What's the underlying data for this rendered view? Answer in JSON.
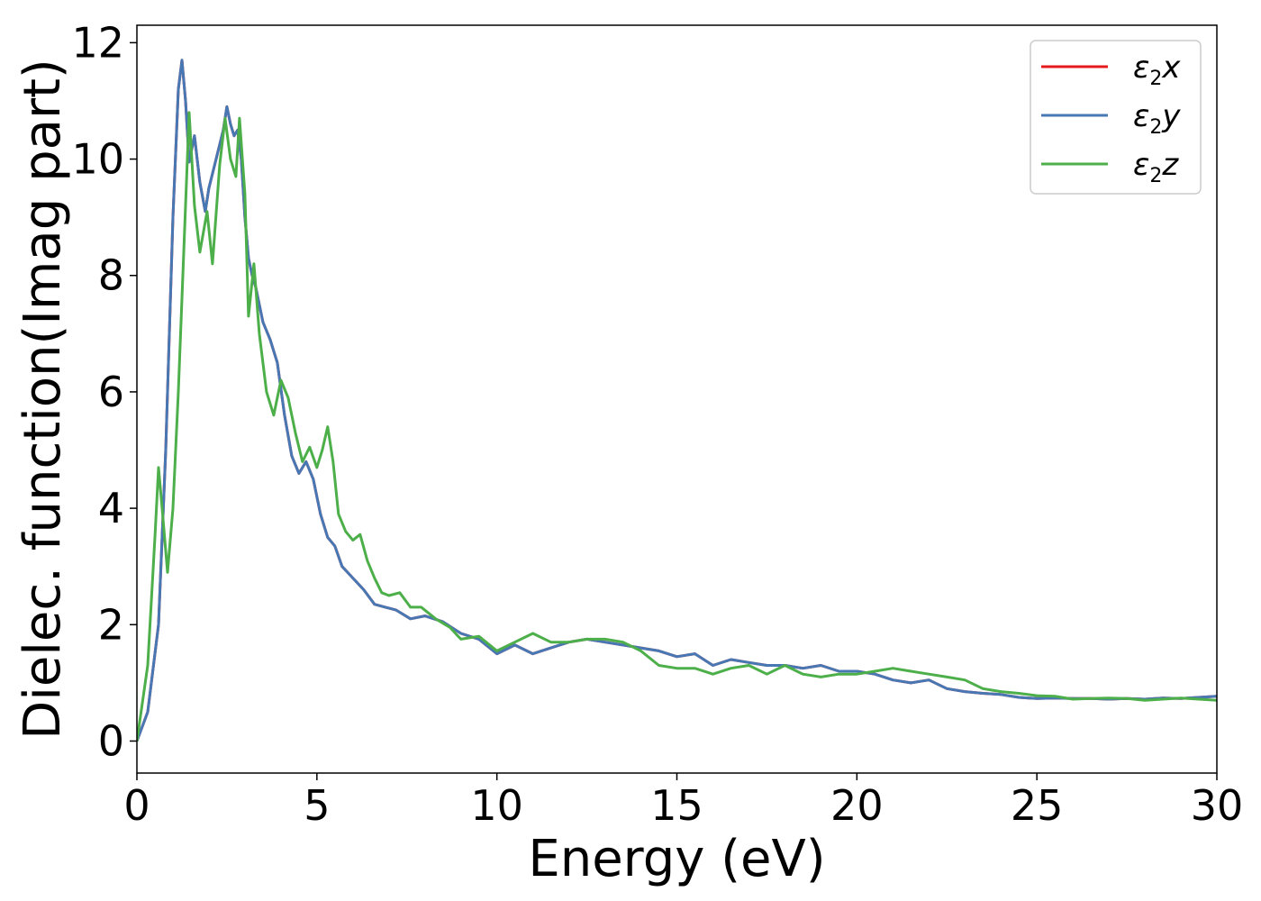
{
  "chart_data": {
    "type": "line",
    "xlabel": "Energy (eV)",
    "ylabel": "Dielec. function(Imag part)",
    "xlim": [
      0,
      30
    ],
    "ylim": [
      -0.55,
      12.3
    ],
    "xticks": [
      "0",
      "5",
      "10",
      "15",
      "20",
      "25",
      "30"
    ],
    "yticks": [
      "0",
      "2",
      "4",
      "6",
      "8",
      "10",
      "12"
    ],
    "grid": false,
    "legend_position": "top-right",
    "series": [
      {
        "name": "ε₂x",
        "legend_label": "x",
        "color": "#e41a1c",
        "x": [
          0,
          0.3,
          0.6,
          0.8,
          1.0,
          1.15,
          1.25,
          1.35,
          1.45,
          1.6,
          1.75,
          1.9,
          2.0,
          2.2,
          2.4,
          2.5,
          2.6,
          2.7,
          2.8,
          2.9,
          3.0,
          3.1,
          3.2,
          3.3,
          3.5,
          3.7,
          3.9,
          4.1,
          4.3,
          4.5,
          4.7,
          4.9,
          5.1,
          5.3,
          5.5,
          5.7,
          6.0,
          6.3,
          6.6,
          6.9,
          7.2,
          7.6,
          8.0,
          8.5,
          9.0,
          9.5,
          10.0,
          10.5,
          11.0,
          11.5,
          12.0,
          12.5,
          13.0,
          13.5,
          14.0,
          14.5,
          15.0,
          15.5,
          16.0,
          16.5,
          17.0,
          17.5,
          18.0,
          18.5,
          19.0,
          19.5,
          20.0,
          20.5,
          21.0,
          21.5,
          22.0,
          22.5,
          23.0,
          23.5,
          24.0,
          24.5,
          25.0,
          25.5,
          26.0,
          26.5,
          27.0,
          27.5,
          28.0,
          28.5,
          29.0,
          29.5,
          30.0
        ],
        "y": [
          0,
          0.5,
          2.0,
          5.0,
          9.0,
          11.2,
          11.7,
          11.0,
          9.95,
          10.4,
          9.6,
          9.1,
          9.5,
          10.0,
          10.5,
          10.9,
          10.6,
          10.4,
          10.5,
          10.0,
          9.0,
          8.3,
          8.0,
          7.8,
          7.2,
          6.9,
          6.5,
          5.6,
          4.9,
          4.6,
          4.8,
          4.5,
          3.9,
          3.5,
          3.35,
          3.0,
          2.8,
          2.6,
          2.35,
          2.3,
          2.25,
          2.1,
          2.15,
          2.05,
          1.85,
          1.75,
          1.5,
          1.65,
          1.5,
          1.6,
          1.7,
          1.75,
          1.7,
          1.65,
          1.6,
          1.55,
          1.45,
          1.5,
          1.3,
          1.4,
          1.35,
          1.3,
          1.3,
          1.25,
          1.3,
          1.2,
          1.2,
          1.15,
          1.05,
          1.0,
          1.05,
          0.9,
          0.85,
          0.82,
          0.8,
          0.75,
          0.73,
          0.74,
          0.73,
          0.73,
          0.72,
          0.73,
          0.72,
          0.74,
          0.73,
          0.75,
          0.77
        ]
      },
      {
        "name": "ε₂y",
        "legend_label": "y",
        "color": "#4878b4",
        "x": [
          0,
          0.3,
          0.6,
          0.8,
          1.0,
          1.15,
          1.25,
          1.35,
          1.45,
          1.6,
          1.75,
          1.9,
          2.0,
          2.2,
          2.4,
          2.5,
          2.6,
          2.7,
          2.8,
          2.9,
          3.0,
          3.1,
          3.2,
          3.3,
          3.5,
          3.7,
          3.9,
          4.1,
          4.3,
          4.5,
          4.7,
          4.9,
          5.1,
          5.3,
          5.5,
          5.7,
          6.0,
          6.3,
          6.6,
          6.9,
          7.2,
          7.6,
          8.0,
          8.5,
          9.0,
          9.5,
          10.0,
          10.5,
          11.0,
          11.5,
          12.0,
          12.5,
          13.0,
          13.5,
          14.0,
          14.5,
          15.0,
          15.5,
          16.0,
          16.5,
          17.0,
          17.5,
          18.0,
          18.5,
          19.0,
          19.5,
          20.0,
          20.5,
          21.0,
          21.5,
          22.0,
          22.5,
          23.0,
          23.5,
          24.0,
          24.5,
          25.0,
          25.5,
          26.0,
          26.5,
          27.0,
          27.5,
          28.0,
          28.5,
          29.0,
          29.5,
          30.0
        ],
        "y": [
          0,
          0.5,
          2.0,
          5.0,
          9.0,
          11.2,
          11.7,
          11.0,
          9.95,
          10.4,
          9.6,
          9.1,
          9.5,
          10.0,
          10.5,
          10.9,
          10.6,
          10.4,
          10.5,
          10.0,
          9.0,
          8.3,
          8.0,
          7.8,
          7.2,
          6.9,
          6.5,
          5.6,
          4.9,
          4.6,
          4.8,
          4.5,
          3.9,
          3.5,
          3.35,
          3.0,
          2.8,
          2.6,
          2.35,
          2.3,
          2.25,
          2.1,
          2.15,
          2.05,
          1.85,
          1.75,
          1.5,
          1.65,
          1.5,
          1.6,
          1.7,
          1.75,
          1.7,
          1.65,
          1.6,
          1.55,
          1.45,
          1.5,
          1.3,
          1.4,
          1.35,
          1.3,
          1.3,
          1.25,
          1.3,
          1.2,
          1.2,
          1.15,
          1.05,
          1.0,
          1.05,
          0.9,
          0.85,
          0.82,
          0.8,
          0.75,
          0.73,
          0.74,
          0.73,
          0.73,
          0.72,
          0.73,
          0.72,
          0.74,
          0.73,
          0.75,
          0.77
        ]
      },
      {
        "name": "ε₂z",
        "legend_label": "z",
        "color": "#4daf4a",
        "x": [
          0,
          0.3,
          0.5,
          0.6,
          0.7,
          0.85,
          1.0,
          1.15,
          1.3,
          1.45,
          1.6,
          1.75,
          1.95,
          2.1,
          2.3,
          2.45,
          2.6,
          2.75,
          2.85,
          3.0,
          3.1,
          3.25,
          3.4,
          3.6,
          3.8,
          4.0,
          4.2,
          4.4,
          4.6,
          4.8,
          5.0,
          5.15,
          5.3,
          5.45,
          5.6,
          5.8,
          6.0,
          6.2,
          6.4,
          6.6,
          6.8,
          7.0,
          7.3,
          7.6,
          7.9,
          8.3,
          8.7,
          9.0,
          9.5,
          10.0,
          10.5,
          11.0,
          11.5,
          12.0,
          12.5,
          13.0,
          13.5,
          14.0,
          14.5,
          15.0,
          15.5,
          16.0,
          16.5,
          17.0,
          17.5,
          18.0,
          18.5,
          19.0,
          19.5,
          20.0,
          20.5,
          21.0,
          21.5,
          22.0,
          22.5,
          23.0,
          23.5,
          24.0,
          24.5,
          25.0,
          25.5,
          26.0,
          26.5,
          27.0,
          27.5,
          28.0,
          28.5,
          29.0,
          29.5,
          30.0
        ],
        "y": [
          0,
          1.3,
          3.5,
          4.7,
          4.0,
          2.9,
          4.0,
          6.0,
          8.4,
          10.8,
          9.2,
          8.4,
          9.1,
          8.2,
          9.9,
          10.7,
          10.0,
          9.7,
          10.7,
          9.4,
          7.3,
          8.2,
          7.0,
          6.0,
          5.6,
          6.2,
          5.9,
          5.3,
          4.8,
          5.05,
          4.7,
          5.0,
          5.4,
          4.8,
          3.9,
          3.6,
          3.45,
          3.55,
          3.1,
          2.8,
          2.55,
          2.5,
          2.55,
          2.3,
          2.3,
          2.1,
          1.95,
          1.75,
          1.8,
          1.55,
          1.7,
          1.85,
          1.7,
          1.7,
          1.75,
          1.75,
          1.7,
          1.55,
          1.3,
          1.25,
          1.25,
          1.15,
          1.25,
          1.3,
          1.15,
          1.3,
          1.15,
          1.1,
          1.15,
          1.15,
          1.2,
          1.25,
          1.2,
          1.15,
          1.1,
          1.05,
          0.9,
          0.85,
          0.82,
          0.78,
          0.77,
          0.72,
          0.73,
          0.74,
          0.73,
          0.7,
          0.72,
          0.74,
          0.72,
          0.7
        ]
      }
    ]
  }
}
